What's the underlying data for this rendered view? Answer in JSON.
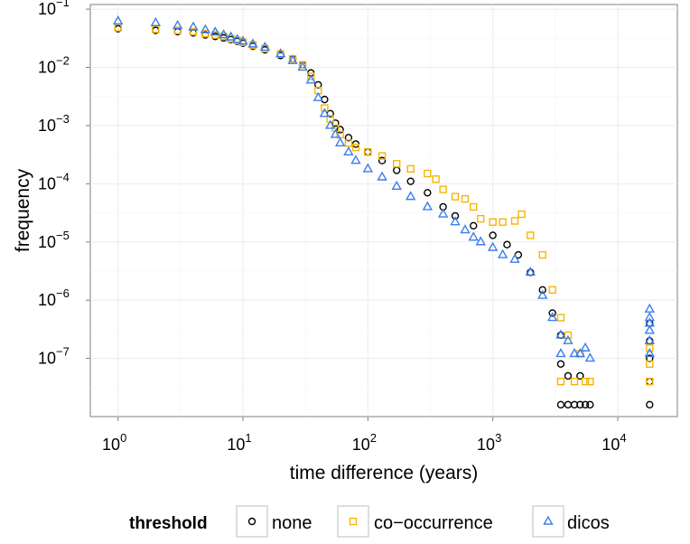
{
  "chart_data": {
    "type": "scatter",
    "xlabel": "time difference (years)",
    "ylabel": "frequency",
    "x_scale": "log10",
    "y_scale": "log10",
    "xlim": [
      0.6,
      30000
    ],
    "ylim": [
      1e-08,
      0.12
    ],
    "x_ticks": [
      {
        "base": "10",
        "exp": "0",
        "value": 1
      },
      {
        "base": "10",
        "exp": "1",
        "value": 10
      },
      {
        "base": "10",
        "exp": "2",
        "value": 100
      },
      {
        "base": "10",
        "exp": "3",
        "value": 1000
      },
      {
        "base": "10",
        "exp": "4",
        "value": 10000
      }
    ],
    "y_ticks": [
      {
        "base": "10",
        "exp": "−7",
        "value": 1e-07
      },
      {
        "base": "10",
        "exp": "−6",
        "value": 1e-06
      },
      {
        "base": "10",
        "exp": "−5",
        "value": 1e-05
      },
      {
        "base": "10",
        "exp": "−4",
        "value": 0.0001
      },
      {
        "base": "10",
        "exp": "−3",
        "value": 0.001
      },
      {
        "base": "10",
        "exp": "−2",
        "value": 0.01
      },
      {
        "base": "10",
        "exp": "−1",
        "value": 0.1
      }
    ],
    "grid": true,
    "legend": {
      "title": "threshold",
      "position": "bottom"
    },
    "series": [
      {
        "name": "none",
        "marker": "circle",
        "color": "#000000",
        "points": [
          [
            1,
            0.046
          ],
          [
            2,
            0.043
          ],
          [
            3,
            0.041
          ],
          [
            4,
            0.039
          ],
          [
            5,
            0.036
          ],
          [
            6,
            0.034
          ],
          [
            7,
            0.032
          ],
          [
            8,
            0.03
          ],
          [
            9,
            0.028
          ],
          [
            10,
            0.026
          ],
          [
            12,
            0.023
          ],
          [
            15,
            0.02
          ],
          [
            20,
            0.016
          ],
          [
            25,
            0.014
          ],
          [
            30,
            0.011
          ],
          [
            35,
            0.008
          ],
          [
            40,
            0.005
          ],
          [
            45,
            0.0028
          ],
          [
            50,
            0.0016
          ],
          [
            55,
            0.0011
          ],
          [
            60,
            0.00085
          ],
          [
            70,
            0.00062
          ],
          [
            80,
            0.00048
          ],
          [
            100,
            0.00035
          ],
          [
            130,
            0.00025
          ],
          [
            170,
            0.00017
          ],
          [
            220,
            0.00011
          ],
          [
            300,
            7e-05
          ],
          [
            400,
            4e-05
          ],
          [
            500,
            2.8e-05
          ],
          [
            700,
            1.9e-05
          ],
          [
            1000,
            1.3e-05
          ],
          [
            1300,
            9e-06
          ],
          [
            1600,
            6e-06
          ],
          [
            2000,
            3e-06
          ],
          [
            2500,
            1.5e-06
          ],
          [
            3000,
            6e-07
          ],
          [
            3500,
            2.5e-07
          ],
          [
            3500,
            8e-08
          ],
          [
            3500,
            1.6e-08
          ],
          [
            4000,
            1.6e-08
          ],
          [
            4500,
            1.6e-08
          ],
          [
            5000,
            1.6e-08
          ],
          [
            5500,
            1.6e-08
          ],
          [
            6000,
            1.6e-08
          ],
          [
            4000,
            5e-08
          ],
          [
            5000,
            5e-08
          ],
          [
            18000,
            1.6e-08
          ],
          [
            18000,
            4e-08
          ],
          [
            18000,
            1e-07
          ],
          [
            18000,
            2e-07
          ],
          [
            18000,
            4e-07
          ]
        ]
      },
      {
        "name": "co−occurrence",
        "marker": "square",
        "color": "#f7b500",
        "points": [
          [
            1,
            0.048
          ],
          [
            2,
            0.045
          ],
          [
            3,
            0.043
          ],
          [
            4,
            0.041
          ],
          [
            5,
            0.038
          ],
          [
            6,
            0.036
          ],
          [
            7,
            0.034
          ],
          [
            8,
            0.031
          ],
          [
            9,
            0.029
          ],
          [
            10,
            0.027
          ],
          [
            12,
            0.024
          ],
          [
            15,
            0.021
          ],
          [
            20,
            0.017
          ],
          [
            25,
            0.014
          ],
          [
            30,
            0.011
          ],
          [
            35,
            0.007
          ],
          [
            40,
            0.004
          ],
          [
            45,
            0.002
          ],
          [
            50,
            0.0013
          ],
          [
            55,
            0.0009
          ],
          [
            60,
            0.0007
          ],
          [
            70,
            0.0005
          ],
          [
            80,
            0.00042
          ],
          [
            100,
            0.00035
          ],
          [
            130,
            0.0003
          ],
          [
            170,
            0.00022
          ],
          [
            220,
            0.00018
          ],
          [
            300,
            0.00015
          ],
          [
            350,
            0.00012
          ],
          [
            400,
            8e-05
          ],
          [
            500,
            6e-05
          ],
          [
            600,
            5.5e-05
          ],
          [
            700,
            4e-05
          ],
          [
            800,
            2.5e-05
          ],
          [
            1000,
            2.2e-05
          ],
          [
            1200,
            2.2e-05
          ],
          [
            1500,
            2.3e-05
          ],
          [
            1700,
            3e-05
          ],
          [
            2000,
            1.3e-05
          ],
          [
            2500,
            6e-06
          ],
          [
            3000,
            1.5e-06
          ],
          [
            3500,
            5e-07
          ],
          [
            4000,
            2.5e-07
          ],
          [
            5000,
            1.2e-07
          ],
          [
            6000,
            4e-08
          ],
          [
            3500,
            4e-08
          ],
          [
            4500,
            4e-08
          ],
          [
            5500,
            4e-08
          ],
          [
            18000,
            4e-08
          ],
          [
            18000,
            8e-08
          ],
          [
            18000,
            1.5e-07
          ]
        ]
      },
      {
        "name": "dicos",
        "marker": "triangle",
        "color": "#3b7ded",
        "points": [
          [
            1,
            0.062
          ],
          [
            2,
            0.058
          ],
          [
            3,
            0.052
          ],
          [
            4,
            0.049
          ],
          [
            5,
            0.044
          ],
          [
            6,
            0.04
          ],
          [
            7,
            0.036
          ],
          [
            8,
            0.033
          ],
          [
            9,
            0.03
          ],
          [
            10,
            0.028
          ],
          [
            12,
            0.025
          ],
          [
            15,
            0.022
          ],
          [
            20,
            0.017
          ],
          [
            25,
            0.013
          ],
          [
            30,
            0.01
          ],
          [
            35,
            0.006
          ],
          [
            40,
            0.003
          ],
          [
            45,
            0.0016
          ],
          [
            50,
            0.001
          ],
          [
            55,
            0.0007
          ],
          [
            60,
            0.0005
          ],
          [
            70,
            0.00035
          ],
          [
            80,
            0.00025
          ],
          [
            100,
            0.00018
          ],
          [
            130,
            0.00013
          ],
          [
            170,
            9e-05
          ],
          [
            220,
            6e-05
          ],
          [
            300,
            4e-05
          ],
          [
            400,
            3e-05
          ],
          [
            500,
            2.2e-05
          ],
          [
            600,
            1.6e-05
          ],
          [
            700,
            1.2e-05
          ],
          [
            800,
            1e-05
          ],
          [
            1000,
            8e-06
          ],
          [
            1200,
            6e-06
          ],
          [
            1500,
            5e-06
          ],
          [
            2000,
            3e-06
          ],
          [
            2500,
            1.2e-06
          ],
          [
            3000,
            5e-07
          ],
          [
            3500,
            2.5e-07
          ],
          [
            4000,
            2e-07
          ],
          [
            5000,
            1.2e-07
          ],
          [
            6000,
            1e-07
          ],
          [
            3500,
            1.2e-07
          ],
          [
            4500,
            1.2e-07
          ],
          [
            5500,
            1.5e-07
          ],
          [
            18000,
            1.2e-07
          ],
          [
            18000,
            2e-07
          ],
          [
            18000,
            3e-07
          ],
          [
            18000,
            4e-07
          ],
          [
            18000,
            5e-07
          ],
          [
            18000,
            7e-07
          ]
        ]
      }
    ]
  }
}
